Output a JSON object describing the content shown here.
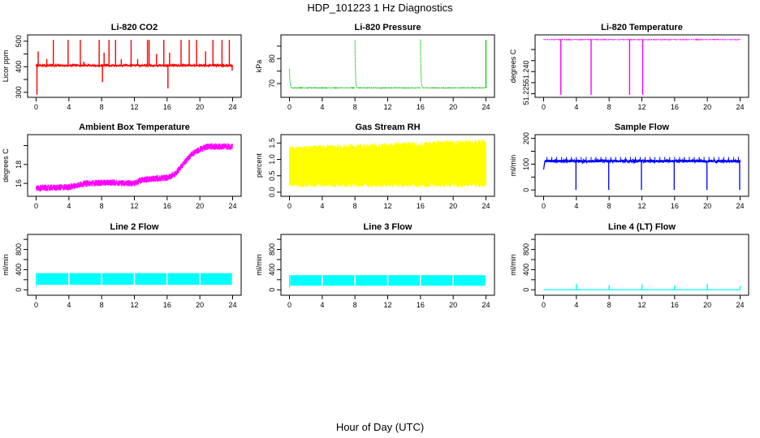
{
  "figure": {
    "title": "HDP_101223  1 Hz Diagnostics",
    "xlabel": "Hour of Day (UTC)"
  },
  "chart_data": [
    {
      "type": "line",
      "title": "Li-820 CO2",
      "ylabel": "Licor ppm",
      "color": "#ff0000",
      "xlim": [
        0,
        24
      ],
      "ylim": [
        290,
        515
      ],
      "xticks": [
        0,
        4,
        8,
        12,
        16,
        20,
        24
      ],
      "yticks": [
        300,
        350,
        400,
        450,
        500
      ],
      "ytick_labels": [
        "300",
        "",
        "400",
        "",
        "500"
      ],
      "baseline": 405,
      "noise": 3,
      "spikes": [
        {
          "x": 0.1,
          "y": 290
        },
        {
          "x": 0.25,
          "y": 460
        },
        {
          "x": 1.3,
          "y": 430
        },
        {
          "x": 2.1,
          "y": 505
        },
        {
          "x": 3.9,
          "y": 505
        },
        {
          "x": 5.4,
          "y": 505
        },
        {
          "x": 5.8,
          "y": 420
        },
        {
          "x": 7.7,
          "y": 505
        },
        {
          "x": 8.1,
          "y": 340
        },
        {
          "x": 8.3,
          "y": 455
        },
        {
          "x": 8.9,
          "y": 505
        },
        {
          "x": 9.7,
          "y": 505
        },
        {
          "x": 10.4,
          "y": 430
        },
        {
          "x": 11.6,
          "y": 505
        },
        {
          "x": 12.4,
          "y": 430
        },
        {
          "x": 13.6,
          "y": 505
        },
        {
          "x": 13.8,
          "y": 505
        },
        {
          "x": 14.7,
          "y": 450
        },
        {
          "x": 15.6,
          "y": 505
        },
        {
          "x": 16.1,
          "y": 315
        },
        {
          "x": 16.3,
          "y": 455
        },
        {
          "x": 17.7,
          "y": 505
        },
        {
          "x": 18.7,
          "y": 505
        },
        {
          "x": 19.6,
          "y": 505
        },
        {
          "x": 20.7,
          "y": 460
        },
        {
          "x": 21.6,
          "y": 505
        },
        {
          "x": 22.7,
          "y": 505
        },
        {
          "x": 23.6,
          "y": 505
        },
        {
          "x": 23.95,
          "y": 385
        }
      ]
    },
    {
      "type": "line",
      "title": "Li-820 Pressure",
      "ylabel": "kPa",
      "color": "#00c000",
      "xlim": [
        0,
        24
      ],
      "ylim": [
        65.5,
        88.5
      ],
      "xticks": [
        0,
        4,
        8,
        12,
        16,
        20,
        24
      ],
      "yticks": [
        70,
        75,
        80,
        85
      ],
      "ytick_labels": [
        "70",
        "",
        "80",
        ""
      ],
      "segments": [
        {
          "x0": 0.0,
          "x1": 8.0,
          "start": 76,
          "level": 68.3
        },
        {
          "x0": 8.0,
          "x1": 16.0,
          "start": 87.5,
          "level": 68.3
        },
        {
          "x0": 16.0,
          "x1": 24.0,
          "start": 87.5,
          "level": 68.3
        }
      ],
      "end_spike": {
        "x": 24.0,
        "y": 87.5
      },
      "noise": 0.2
    },
    {
      "type": "line",
      "title": "Li-820 Temperature",
      "ylabel": "degrees C",
      "color": "#ff00ff",
      "xlim": [
        0,
        24
      ],
      "ylim": [
        51.2245,
        51.2505
      ],
      "xticks": [
        0,
        4,
        8,
        12,
        16,
        20,
        24
      ],
      "yticks": [
        51.225,
        51.23,
        51.235,
        51.24,
        51.245
      ],
      "ytick_labels": [
        "51.225",
        "",
        "51.240",
        "",
        ""
      ],
      "baseline": 51.2495,
      "noise": 0.0001,
      "drops": [
        {
          "x": 2.1,
          "y": 51.2245
        },
        {
          "x": 5.8,
          "y": 51.2245
        },
        {
          "x": 10.5,
          "y": 51.2245
        },
        {
          "x": 12.1,
          "y": 51.2245
        }
      ]
    },
    {
      "type": "line",
      "title": "Ambient Box Temperature",
      "ylabel": "degrees C",
      "color": "#ff00ff",
      "xlim": [
        0,
        24
      ],
      "ylim": [
        14.9,
        20.9
      ],
      "xticks": [
        0,
        4,
        8,
        12,
        16,
        20,
        24
      ],
      "yticks": [
        16,
        18,
        20
      ],
      "ytick_labels": [
        "16",
        "18",
        ""
      ],
      "noise": 0.35,
      "trend": [
        {
          "x": 0,
          "y": 15.5
        },
        {
          "x": 4,
          "y": 15.6
        },
        {
          "x": 6,
          "y": 16.0
        },
        {
          "x": 9,
          "y": 16.1
        },
        {
          "x": 12,
          "y": 16.0
        },
        {
          "x": 13,
          "y": 16.4
        },
        {
          "x": 16,
          "y": 16.6
        },
        {
          "x": 17,
          "y": 17.0
        },
        {
          "x": 18,
          "y": 18.1
        },
        {
          "x": 19,
          "y": 19.1
        },
        {
          "x": 20,
          "y": 19.6
        },
        {
          "x": 21,
          "y": 19.9
        },
        {
          "x": 24,
          "y": 19.9
        }
      ]
    },
    {
      "type": "line",
      "title": "Gas Stream RH",
      "ylabel": "percent",
      "color": "#ffff00",
      "xlim": [
        0,
        24
      ],
      "ylim": [
        -0.05,
        1.68
      ],
      "xticks": [
        0,
        4,
        8,
        12,
        16,
        20,
        24
      ],
      "yticks": [
        0.0,
        0.5,
        1.0,
        1.5
      ],
      "ytick_labels": [
        "0.0",
        "0.5",
        "1.0",
        "1.5"
      ],
      "band": {
        "lo": [
          0.15,
          0.32
        ],
        "hi_start": [
          1.25,
          1.4
        ],
        "hi_end": [
          1.4,
          1.62
        ]
      }
    },
    {
      "type": "line",
      "title": "Sample Flow",
      "ylabel": "ml/min",
      "color": "#0000ff",
      "xlim": [
        0,
        24
      ],
      "ylim": [
        -15,
        205
      ],
      "xticks": [
        0,
        4,
        8,
        12,
        16,
        20,
        24
      ],
      "yticks": [
        0,
        50,
        100,
        150,
        200
      ],
      "ytick_labels": [
        "0",
        "",
        "100",
        "",
        "200"
      ],
      "baseline": 112,
      "noise": 5,
      "tick_level": 128,
      "dropouts": [
        4.0,
        8.0,
        12.0,
        16.0,
        20.0,
        24.0
      ],
      "dropout_value": 0
    },
    {
      "type": "area",
      "title": "Line 2 Flow",
      "ylabel": "ml/min",
      "color": "#00ffff",
      "xlim": [
        0,
        24
      ],
      "ylim": [
        -60,
        1050
      ],
      "xticks": [
        0,
        4,
        8,
        12,
        16,
        20,
        24
      ],
      "yticks": [
        0,
        200,
        400,
        600,
        800,
        1000
      ],
      "ytick_labels": [
        "0",
        "",
        "400",
        "",
        "800",
        ""
      ],
      "band": [
        100,
        330
      ],
      "gaps": [
        4.0,
        8.0,
        12.0,
        16.0,
        20.0
      ]
    },
    {
      "type": "area",
      "title": "Line 3 Flow",
      "ylabel": "ml/min",
      "color": "#00ffff",
      "xlim": [
        0,
        24
      ],
      "ylim": [
        -60,
        1050
      ],
      "xticks": [
        0,
        4,
        8,
        12,
        16,
        20,
        24
      ],
      "yticks": [
        0,
        200,
        400,
        600,
        800,
        1000
      ],
      "ytick_labels": [
        "0",
        "",
        "400",
        "",
        "800",
        ""
      ],
      "band": [
        80,
        290
      ],
      "gaps": [
        4.0,
        8.0,
        12.0,
        16.0,
        20.0
      ]
    },
    {
      "type": "line",
      "title": "Line 4 (LT) Flow",
      "ylabel": "ml/min",
      "color": "#00ffff",
      "xlim": [
        0,
        24
      ],
      "ylim": [
        -60,
        1050
      ],
      "xticks": [
        0,
        4,
        8,
        12,
        16,
        20,
        24
      ],
      "yticks": [
        0,
        200,
        400,
        600,
        800,
        1000
      ],
      "ytick_labels": [
        "0",
        "",
        "400",
        "",
        "800",
        ""
      ],
      "baseline": 0,
      "spikes": [
        {
          "x": 4.0,
          "y": 120
        },
        {
          "x": 8.0,
          "y": 90
        },
        {
          "x": 12.0,
          "y": 110
        },
        {
          "x": 16.0,
          "y": 80
        },
        {
          "x": 20.0,
          "y": 120
        },
        {
          "x": 24.0,
          "y": 80
        }
      ]
    }
  ]
}
